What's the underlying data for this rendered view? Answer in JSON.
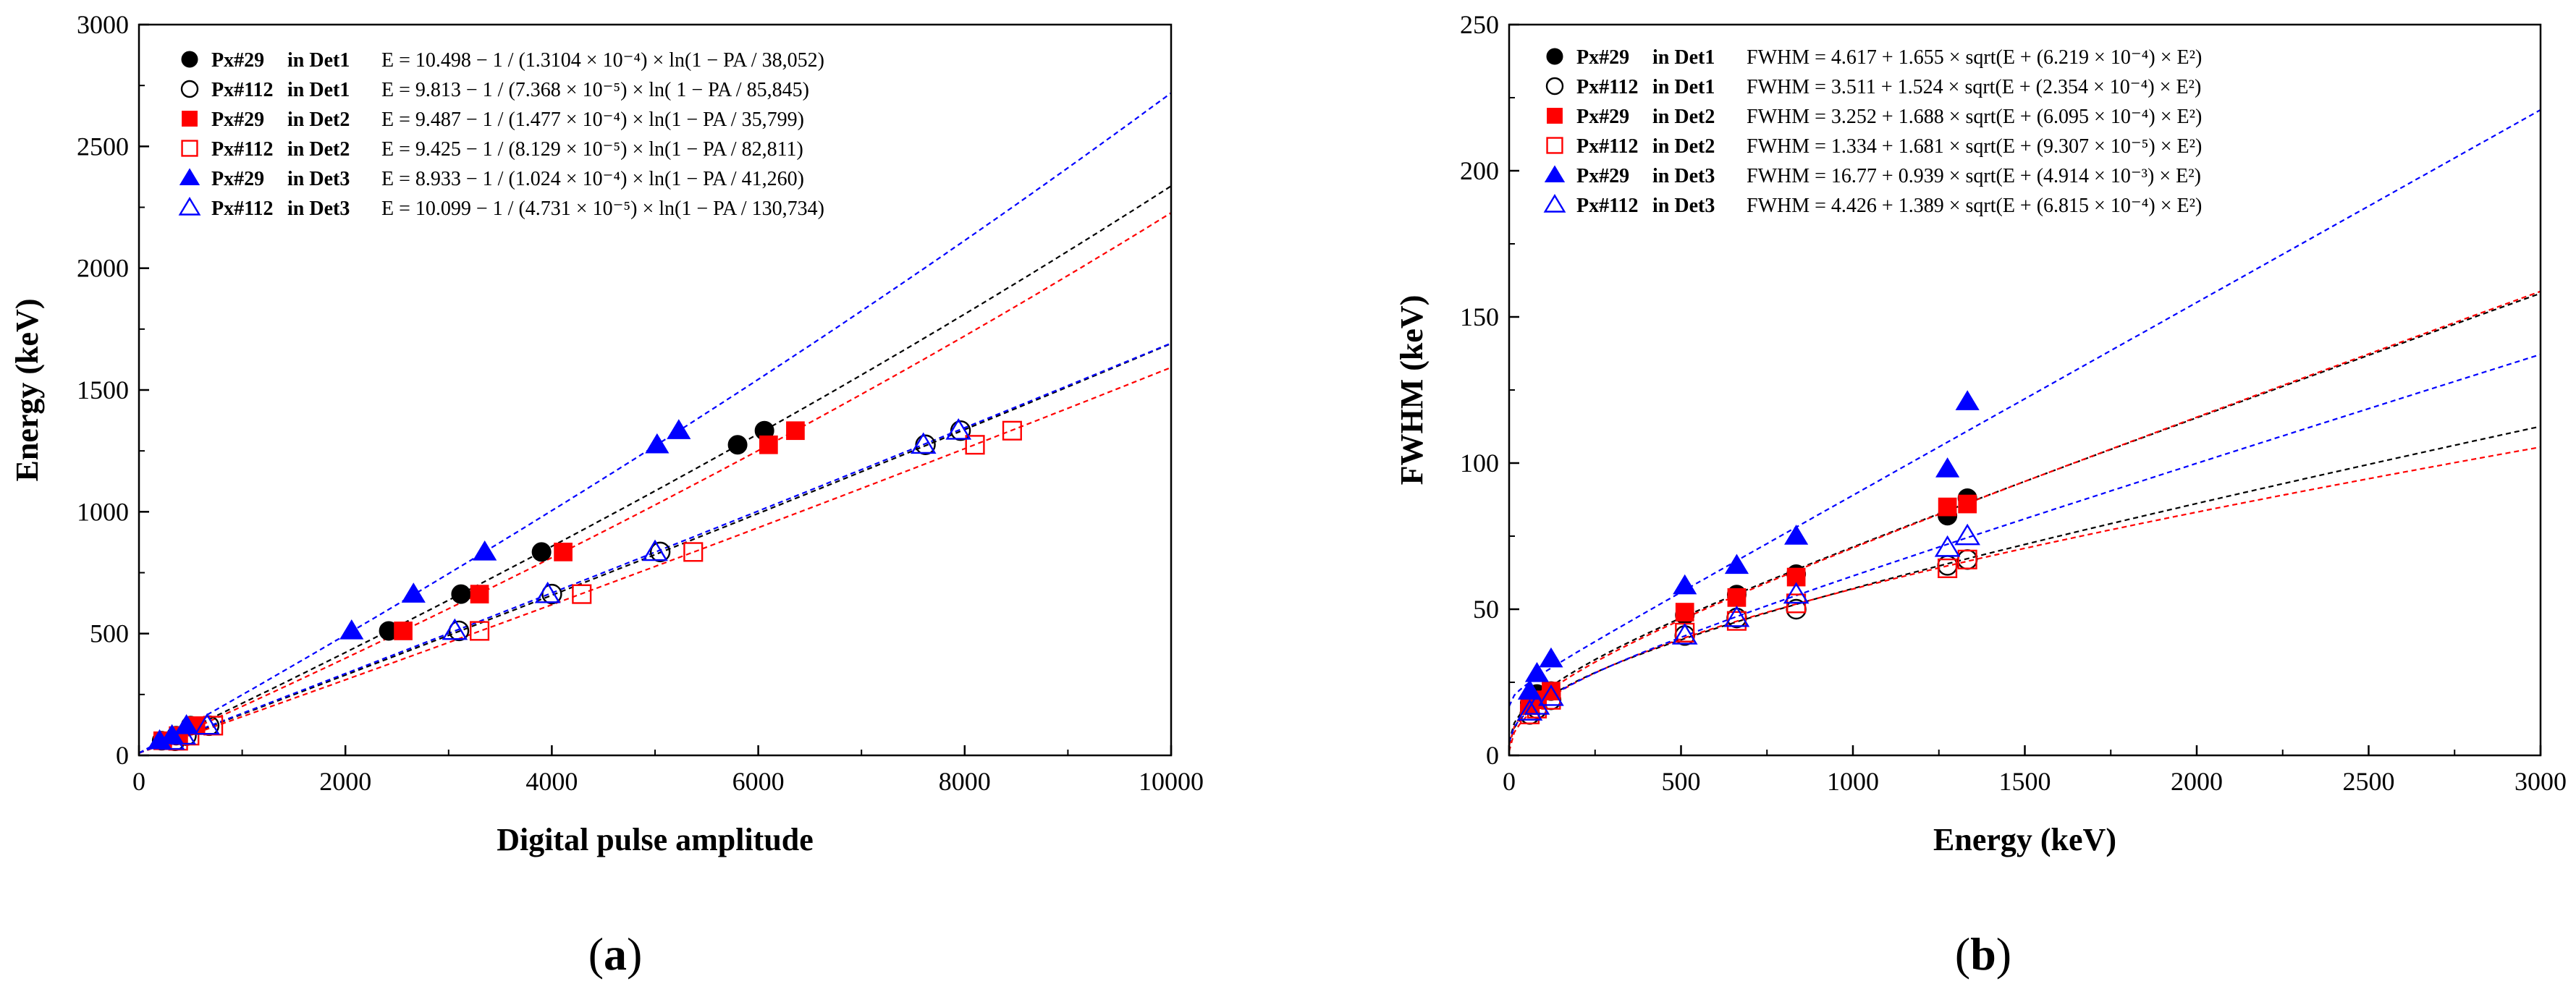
{
  "chart_data": [
    {
      "panel": "(a)",
      "panel_letter": "a",
      "type": "scatter",
      "xlabel": "Digital pulse amplitude",
      "ylabel": "Energy (keV)",
      "xlim": [
        0,
        10000
      ],
      "ylim": [
        0,
        3000
      ],
      "xticks": [
        0,
        2000,
        4000,
        6000,
        8000,
        10000
      ],
      "yticks": [
        0,
        500,
        1000,
        1500,
        2000,
        2500,
        3000
      ],
      "legend_position": "top-left",
      "series": [
        {
          "name": "Px#29",
          "det": "in Det1",
          "marker": "circle",
          "filled": true,
          "color": "#000000",
          "equation": "E = 10.498 − 1 / (1.3104 × 10⁻⁴) × ln(1 − PA / 38,052)",
          "fit": {
            "model": "energy",
            "a": 10.498,
            "b": 0.00013104,
            "c": 38052
          },
          "points": [
            [
              220,
              60
            ],
            [
              360,
              81
            ],
            [
              500,
              122
            ],
            [
              2420,
              511
            ],
            [
              3120,
              662
            ],
            [
              3900,
              835
            ],
            [
              5800,
              1275
            ],
            [
              6060,
              1333
            ]
          ]
        },
        {
          "name": "Px#112",
          "det": "in Det1",
          "marker": "circle",
          "filled": false,
          "color": "#000000",
          "equation": "E = 9.813 − 1 / (7.368 × 10⁻⁵) × ln( 1 − PA / 85,845)",
          "fit": {
            "model": "energy",
            "a": 9.813,
            "b": 7.368e-05,
            "c": 85845
          },
          "points": [
            [
              350,
              60
            ],
            [
              460,
              81
            ],
            [
              680,
              122
            ],
            [
              3100,
              511
            ],
            [
              4000,
              662
            ],
            [
              5050,
              835
            ],
            [
              7620,
              1275
            ],
            [
              7960,
              1333
            ]
          ]
        },
        {
          "name": "Px#29",
          "det": "in Det2",
          "marker": "square",
          "filled": true,
          "color": "#ff0000",
          "equation": "E = 9.487 − 1 / (1.477 × 10⁻⁴) × ln(1 − PA / 35,799)",
          "fit": {
            "model": "energy",
            "a": 9.487,
            "b": 0.0001477,
            "c": 35799
          },
          "points": [
            [
              230,
              60
            ],
            [
              380,
              81
            ],
            [
              540,
              122
            ],
            [
              2560,
              511
            ],
            [
              3300,
              662
            ],
            [
              4110,
              835
            ],
            [
              6100,
              1275
            ],
            [
              6360,
              1333
            ]
          ]
        },
        {
          "name": "Px#112",
          "det": "in Det2",
          "marker": "square",
          "filled": false,
          "color": "#ff0000",
          "equation": "E = 9.425 − 1 / (8.129 × 10⁻⁵) × ln(1 − PA / 82,811)",
          "fit": {
            "model": "energy",
            "a": 9.425,
            "b": 8.129e-05,
            "c": 82811
          },
          "points": [
            [
              380,
              60
            ],
            [
              490,
              81
            ],
            [
              720,
              122
            ],
            [
              3300,
              511
            ],
            [
              4290,
              662
            ],
            [
              5370,
              835
            ],
            [
              8100,
              1275
            ],
            [
              8460,
              1333
            ]
          ]
        },
        {
          "name": "Px#29",
          "det": "in Det3",
          "marker": "triangle",
          "filled": true,
          "color": "#0000ff",
          "equation": "E = 8.933 − 1 / (1.024 × 10⁻⁴) × ln(1 − PA / 41,260)",
          "fit": {
            "model": "energy",
            "a": 8.933,
            "b": 0.0001024,
            "c": 41260
          },
          "points": [
            [
              200,
              60
            ],
            [
              320,
              81
            ],
            [
              460,
              122
            ],
            [
              2060,
              511
            ],
            [
              2660,
              662
            ],
            [
              3350,
              835
            ],
            [
              5020,
              1275
            ],
            [
              5230,
              1333
            ]
          ]
        },
        {
          "name": "Px#112",
          "det": "in Det3",
          "marker": "triangle",
          "filled": false,
          "color": "#0000ff",
          "equation": "E = 10.099 − 1 / (4.731 × 10⁻⁵) × ln(1 − PA / 130,734)",
          "fit": {
            "model": "energy",
            "a": 10.099,
            "b": 4.731e-05,
            "c": 130734
          },
          "points": [
            [
              320,
              60
            ],
            [
              430,
              81
            ],
            [
              660,
              122
            ],
            [
              3060,
              511
            ],
            [
              3960,
              662
            ],
            [
              5000,
              835
            ],
            [
              7600,
              1275
            ],
            [
              7940,
              1333
            ]
          ]
        }
      ]
    },
    {
      "panel": "(b)",
      "panel_letter": "b",
      "type": "scatter",
      "xlabel": "Energy (keV)",
      "ylabel": "FWHM (keV)",
      "xlim": [
        0,
        3000
      ],
      "ylim": [
        0,
        250
      ],
      "xticks": [
        0,
        500,
        1000,
        1500,
        2000,
        2500,
        3000
      ],
      "yticks": [
        0,
        50,
        100,
        150,
        200,
        250
      ],
      "legend_position": "top-left",
      "series": [
        {
          "name": "Px#29",
          "det": "in Det1",
          "marker": "circle",
          "filled": true,
          "color": "#000000",
          "equation": "FWHM = 4.617 + 1.655 × sqrt(E + (6.219 × 10⁻⁴) × E²)",
          "fit": {
            "model": "fwhm",
            "a": 4.617,
            "b": 1.655,
            "c": 0.0006219
          },
          "points": [
            [
              60,
              18
            ],
            [
              81,
              21
            ],
            [
              122,
              22
            ],
            [
              511,
              48
            ],
            [
              662,
              55
            ],
            [
              835,
              62
            ],
            [
              1275,
              82
            ],
            [
              1333,
              88
            ]
          ]
        },
        {
          "name": "Px#112",
          "det": "in Det1",
          "marker": "circle",
          "filled": false,
          "color": "#000000",
          "equation": "FWHM = 3.511 + 1.524 × sqrt(E + (2.354 × 10⁻⁴) × E²)",
          "fit": {
            "model": "fwhm",
            "a": 3.511,
            "b": 1.524,
            "c": 0.0002354
          },
          "points": [
            [
              60,
              14
            ],
            [
              81,
              16
            ],
            [
              122,
              19
            ],
            [
              511,
              41
            ],
            [
              662,
              47
            ],
            [
              835,
              50
            ],
            [
              1275,
              65
            ],
            [
              1333,
              67
            ]
          ]
        },
        {
          "name": "Px#29",
          "det": "in Det2",
          "marker": "square",
          "filled": true,
          "color": "#ff0000",
          "equation": "FWHM = 3.252 + 1.688 × sqrt(E + (6.095 × 10⁻⁴) × E²)",
          "fit": {
            "model": "fwhm",
            "a": 3.252,
            "b": 1.688,
            "c": 0.0006095
          },
          "points": [
            [
              60,
              17
            ],
            [
              81,
              19
            ],
            [
              122,
              22
            ],
            [
              511,
              49
            ],
            [
              662,
              54
            ],
            [
              835,
              61
            ],
            [
              1275,
              85
            ],
            [
              1333,
              86
            ]
          ]
        },
        {
          "name": "Px#112",
          "det": "in Det2",
          "marker": "square",
          "filled": false,
          "color": "#ff0000",
          "equation": "FWHM = 1.334 + 1.681 × sqrt(E + (9.307 × 10⁻⁵) × E²)",
          "fit": {
            "model": "fwhm",
            "a": 1.334,
            "b": 1.681,
            "c": 9.307e-05
          },
          "points": [
            [
              60,
              14
            ],
            [
              81,
              16
            ],
            [
              122,
              19
            ],
            [
              511,
              42
            ],
            [
              662,
              46
            ],
            [
              835,
              52
            ],
            [
              1275,
              64
            ],
            [
              1333,
              67
            ]
          ]
        },
        {
          "name": "Px#29",
          "det": "in Det3",
          "marker": "triangle",
          "filled": true,
          "color": "#0000ff",
          "equation": "FWHM = 16.77 + 0.939 × sqrt(E + (4.914 × 10⁻³) × E²)",
          "fit": {
            "model": "fwhm",
            "a": 16.77,
            "b": 0.939,
            "c": 0.004914
          },
          "points": [
            [
              60,
              22
            ],
            [
              81,
              28
            ],
            [
              122,
              33
            ],
            [
              511,
              58
            ],
            [
              662,
              65
            ],
            [
              835,
              75
            ],
            [
              1275,
              98
            ],
            [
              1333,
              121
            ]
          ]
        },
        {
          "name": "Px#112",
          "det": "in Det3",
          "marker": "triangle",
          "filled": false,
          "color": "#0000ff",
          "equation": "FWHM = 4.426 + 1.389 × sqrt(E + (6.815 × 10⁻⁴) × E²)",
          "fit": {
            "model": "fwhm",
            "a": 4.426,
            "b": 1.389,
            "c": 0.0006815
          },
          "points": [
            [
              60,
              15
            ],
            [
              81,
              17
            ],
            [
              122,
              20
            ],
            [
              511,
              41
            ],
            [
              662,
              47
            ],
            [
              835,
              55
            ],
            [
              1275,
              71
            ],
            [
              1333,
              75
            ]
          ]
        }
      ]
    }
  ]
}
